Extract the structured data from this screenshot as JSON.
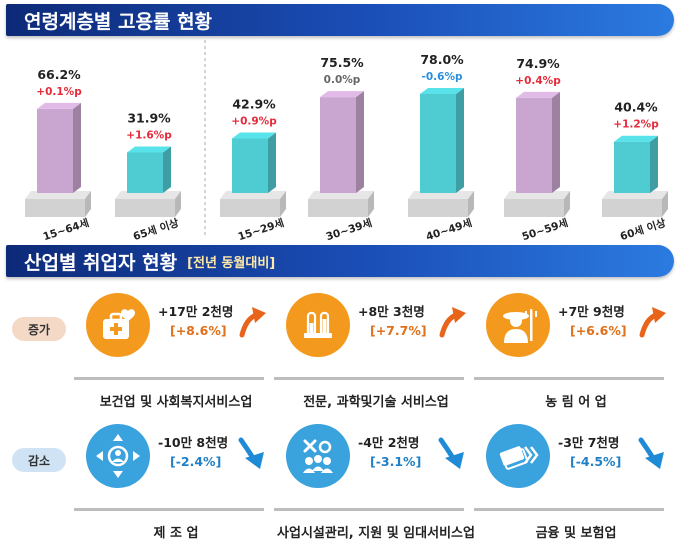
{
  "section1": {
    "title": "연령계층별 고용률 현황"
  },
  "chart_data": {
    "type": "bar",
    "categories": [
      "15~64세",
      "65세 이상",
      "15~29세",
      "30~39세",
      "40~49세",
      "50~59세",
      "60세 이상"
    ],
    "values": [
      66.2,
      31.9,
      42.9,
      75.5,
      78.0,
      74.9,
      40.4
    ],
    "value_labels": [
      "66.2%",
      "31.9%",
      "42.9%",
      "75.5%",
      "78.0%",
      "74.9%",
      "40.4%"
    ],
    "changes": [
      "+0.1%p",
      "+1.6%p",
      "+0.9%p",
      "0.0%p",
      "-0.6%p",
      "+0.4%p",
      "+1.2%p"
    ],
    "colors": {
      "purple": "#c9a6cf",
      "teal": "#4fcbd2",
      "increase": "#e52b3a",
      "decrease": "#2a8ee0",
      "neutral": "#666666"
    },
    "bar_colors": [
      "purple",
      "teal",
      "teal",
      "purple",
      "teal",
      "purple",
      "teal"
    ],
    "change_colors": [
      "increase",
      "increase",
      "increase",
      "neutral",
      "decrease",
      "increase",
      "increase"
    ]
  },
  "section2": {
    "title": "산업별 취업자 현황",
    "subtitle": "[전년 동월대비]",
    "increase_label": "증가",
    "decrease_label": "감소",
    "increase": [
      {
        "value": "+17만 2천명",
        "pct": "[+8.6%]",
        "industry": "보건업 및 사회복지서비스업",
        "icon": "medical-kit-icon"
      },
      {
        "value": "+8만 3천명",
        "pct": "[+7.7%]",
        "industry": "전문, 과학및기술 서비스업",
        "icon": "test-tubes-icon"
      },
      {
        "value": "+7만 9천명",
        "pct": "[+6.6%]",
        "industry": "농 림 어 업",
        "icon": "farmer-icon"
      }
    ],
    "decrease": [
      {
        "value": "-10만 8천명",
        "pct": "[-2.4%]",
        "industry": "제 조 업",
        "icon": "manufacturing-icon"
      },
      {
        "value": "-4만 2천명",
        "pct": "[-3.1%]",
        "industry": "사업시설관리, 지원 및 임대서비스업",
        "icon": "facility-service-icon"
      },
      {
        "value": "-3만 7천명",
        "pct": "[-4.5%]",
        "industry": "금융 및 보험업",
        "icon": "finance-icon"
      }
    ],
    "colors": {
      "increase_accent": "#f39a1e",
      "decrease_accent": "#3aa3de"
    }
  }
}
